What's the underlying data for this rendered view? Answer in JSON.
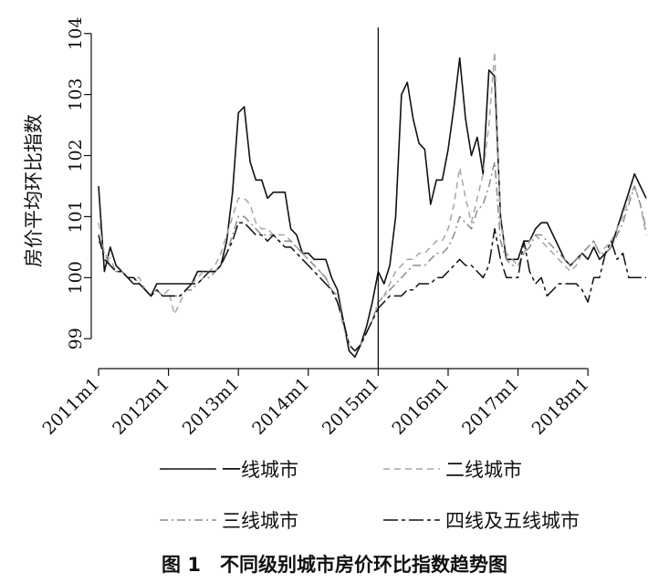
{
  "figure_caption": "图 1　不同级别城市房价环比指数趋势图",
  "chart_data": {
    "type": "line",
    "title": "",
    "xlabel": "",
    "ylabel": "房价平均环比指数",
    "ylim": [
      98.6,
      104.1
    ],
    "yticks": [
      99,
      100,
      101,
      102,
      103,
      104
    ],
    "xticks": [
      {
        "label": "2011m1",
        "t": 0
      },
      {
        "label": "2012m1",
        "t": 12
      },
      {
        "label": "2013m1",
        "t": 24
      },
      {
        "label": "2014m1",
        "t": 36
      },
      {
        "label": "2015m1",
        "t": 48
      },
      {
        "label": "2016m1",
        "t": 60
      },
      {
        "label": "2017m1",
        "t": 72
      },
      {
        "label": "2018m1",
        "t": 84
      }
    ],
    "xlim": [
      0,
      94
    ],
    "vline_at": "2015m1",
    "vline_t": 48,
    "grid": false,
    "legend_position": "bottom",
    "series": [
      {
        "name": "一线城市",
        "style": "solid",
        "values": [
          101.5,
          100.1,
          100.5,
          100.2,
          100.1,
          100.0,
          99.9,
          99.9,
          99.8,
          99.7,
          99.9,
          99.9,
          99.9,
          99.9,
          99.9,
          99.9,
          99.9,
          100.1,
          100.1,
          100.1,
          100.1,
          100.2,
          100.6,
          101.4,
          102.7,
          102.8,
          101.9,
          101.6,
          101.6,
          101.3,
          101.4,
          101.4,
          101.4,
          100.8,
          100.7,
          100.4,
          100.4,
          100.3,
          100.3,
          100.3,
          100.0,
          99.8,
          99.3,
          98.8,
          98.7,
          98.9,
          99.2,
          99.6,
          100.1,
          99.9,
          100.2,
          101.0,
          103.0,
          103.2,
          102.6,
          102.2,
          102.1,
          101.2,
          101.6,
          101.6,
          102.1,
          102.8,
          103.6,
          102.6,
          102.0,
          102.3,
          101.7,
          103.4,
          103.3,
          101.0,
          100.3,
          100.3,
          100.3,
          100.6,
          100.6,
          100.8,
          100.9,
          100.9,
          100.7,
          100.5,
          100.3,
          100.2,
          100.3,
          100.4,
          100.3,
          100.5,
          100.3,
          100.4,
          100.5,
          100.8,
          101.1,
          101.4,
          101.7,
          101.5,
          101.3
        ]
      },
      {
        "name": "二线城市",
        "style": "dashed",
        "values": [
          100.9,
          100.4,
          100.3,
          100.1,
          100.1,
          100.0,
          100.0,
          100.0,
          99.8,
          99.7,
          99.8,
          99.7,
          99.8,
          99.4,
          99.6,
          99.8,
          99.9,
          100.0,
          100.1,
          100.1,
          100.2,
          100.4,
          100.7,
          101.0,
          101.3,
          101.3,
          101.2,
          100.9,
          100.8,
          100.8,
          100.7,
          100.7,
          100.7,
          100.6,
          100.5,
          100.4,
          100.3,
          100.2,
          100.1,
          100.0,
          99.8,
          99.6,
          99.2,
          98.9,
          98.8,
          98.9,
          99.1,
          99.3,
          99.6,
          99.7,
          99.9,
          100.1,
          100.2,
          100.3,
          100.3,
          100.4,
          100.4,
          100.5,
          100.6,
          100.6,
          100.8,
          101.2,
          101.8,
          101.3,
          100.9,
          101.3,
          101.7,
          102.5,
          103.7,
          100.9,
          100.4,
          100.3,
          100.2,
          100.4,
          100.6,
          100.7,
          100.6,
          100.5,
          100.4,
          100.3,
          100.2,
          100.1,
          100.2,
          100.4,
          100.5,
          100.6,
          100.4,
          100.5,
          100.6,
          100.8,
          101.0,
          101.3,
          101.5,
          101.2,
          100.7
        ]
      },
      {
        "name": "三线城市",
        "style": "dashdot",
        "values": [
          100.6,
          100.4,
          100.2,
          100.1,
          100.1,
          100.0,
          100.0,
          99.9,
          99.8,
          99.7,
          99.8,
          99.7,
          99.7,
          99.7,
          99.7,
          99.8,
          99.8,
          99.9,
          100.0,
          100.0,
          100.1,
          100.2,
          100.4,
          100.7,
          101.0,
          101.0,
          100.9,
          100.8,
          100.7,
          100.7,
          100.7,
          100.6,
          100.6,
          100.6,
          100.5,
          100.4,
          100.3,
          100.2,
          100.1,
          100.0,
          99.8,
          99.7,
          99.3,
          98.9,
          98.8,
          98.9,
          99.1,
          99.3,
          99.6,
          99.7,
          99.8,
          99.9,
          100.0,
          100.1,
          100.2,
          100.2,
          100.2,
          100.3,
          100.4,
          100.4,
          100.5,
          100.7,
          101.0,
          100.9,
          100.8,
          101.1,
          101.2,
          101.5,
          101.9,
          100.6,
          100.3,
          100.2,
          100.2,
          100.4,
          100.5,
          100.7,
          100.7,
          100.6,
          100.5,
          100.4,
          100.3,
          100.2,
          100.3,
          100.4,
          100.5,
          100.6,
          100.4,
          100.4,
          100.5,
          100.7,
          100.9,
          101.2,
          101.5,
          101.2,
          100.8
        ]
      },
      {
        "name": "四线及五线城市",
        "style": "longdash",
        "values": [
          100.7,
          100.3,
          100.2,
          100.1,
          100.1,
          100.0,
          100.0,
          99.9,
          99.8,
          99.7,
          99.8,
          99.7,
          99.7,
          99.7,
          99.7,
          99.8,
          99.9,
          99.9,
          100.0,
          100.1,
          100.1,
          100.2,
          100.4,
          100.6,
          100.9,
          100.9,
          100.8,
          100.7,
          100.7,
          100.6,
          100.7,
          100.6,
          100.5,
          100.5,
          100.4,
          100.3,
          100.2,
          100.1,
          100.0,
          99.9,
          99.8,
          99.6,
          99.3,
          98.9,
          98.8,
          98.9,
          99.1,
          99.3,
          99.5,
          99.6,
          99.7,
          99.7,
          99.7,
          99.8,
          99.8,
          99.9,
          99.9,
          99.9,
          100.0,
          100.0,
          100.1,
          100.2,
          100.3,
          100.2,
          100.2,
          100.1,
          100.0,
          100.2,
          100.8,
          100.3,
          100.0,
          100.0,
          100.0,
          100.6,
          100.1,
          99.9,
          100.0,
          99.7,
          99.8,
          99.9,
          99.9,
          99.9,
          99.9,
          99.8,
          99.6,
          100.0,
          100.0,
          100.4,
          100.6,
          100.3,
          100.4,
          100.0,
          100.0,
          100.0,
          100.0
        ]
      }
    ]
  }
}
